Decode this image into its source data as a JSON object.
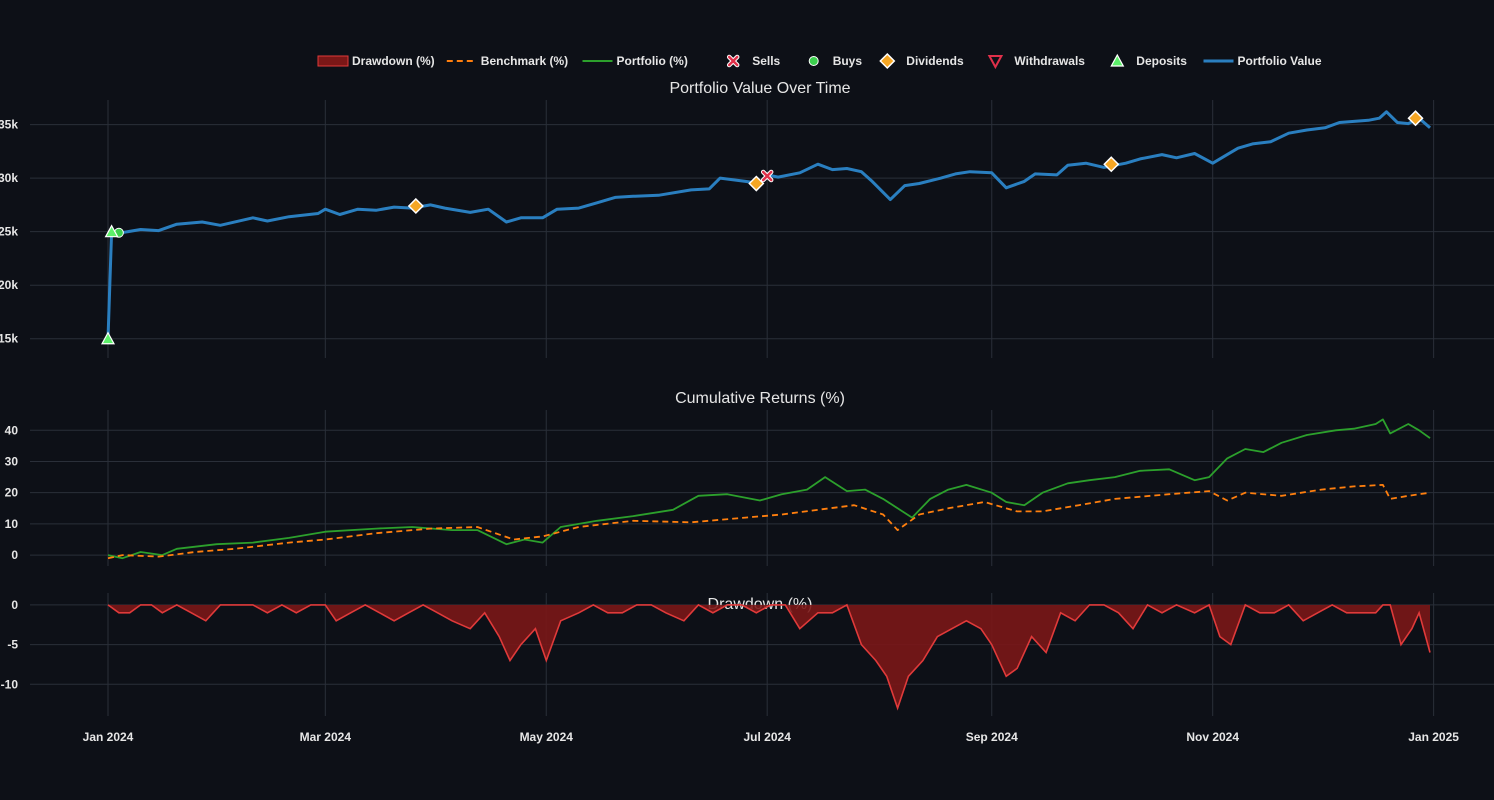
{
  "colors": {
    "background": "#0d1017",
    "grid": "#2a2f39",
    "portfolio_value": "#2a7fc0",
    "portfolio_pct": "#2ca02c",
    "benchmark": "#ff7f0e",
    "drawdown_line": "#e03a3a",
    "drawdown_fill": "#7a1717",
    "dividend": "#f5a623",
    "buy": "#3ccf4e",
    "sell": "#e0304a",
    "deposit": "#5cf06a",
    "withdrawal": "#e0304a"
  },
  "legend": {
    "position": "top-center",
    "items": [
      {
        "key": "drawdown",
        "label": "Drawdown (%)",
        "icon": "filled-rect"
      },
      {
        "key": "benchmark",
        "label": "Benchmark (%)",
        "icon": "dashed-line"
      },
      {
        "key": "portfolio_pct",
        "label": "Portfolio (%)",
        "icon": "solid-line"
      },
      {
        "key": "sells",
        "label": "Sells",
        "icon": "x-marker"
      },
      {
        "key": "buys",
        "label": "Buys",
        "icon": "circle-marker"
      },
      {
        "key": "dividends",
        "label": "Dividends",
        "icon": "diamond-marker"
      },
      {
        "key": "withdrawals",
        "label": "Withdrawals",
        "icon": "triangle-down-marker"
      },
      {
        "key": "deposits",
        "label": "Deposits",
        "icon": "triangle-up-marker"
      },
      {
        "key": "portfolio_value",
        "label": "Portfolio Value",
        "icon": "solid-line"
      }
    ]
  },
  "x_axis": {
    "range": [
      "2024-01-01",
      "2024-12-31"
    ],
    "ticks": [
      {
        "date": "2024-01-01",
        "label": "Jan 2024"
      },
      {
        "date": "2024-03-01",
        "label": "Mar 2024"
      },
      {
        "date": "2024-05-01",
        "label": "May 2024"
      },
      {
        "date": "2024-07-01",
        "label": "Jul 2024"
      },
      {
        "date": "2024-09-01",
        "label": "Sep 2024"
      },
      {
        "date": "2024-11-01",
        "label": "Nov 2024"
      },
      {
        "date": "2025-01-01",
        "label": "Jan 2025"
      }
    ]
  },
  "chart_data": [
    {
      "type": "line",
      "title": "Portfolio Value Over Time",
      "ylim": [
        13200,
        37300
      ],
      "yticks": [
        {
          "value": 15000,
          "label": "15k"
        },
        {
          "value": 20000,
          "label": "20k"
        },
        {
          "value": 25000,
          "label": "25k"
        },
        {
          "value": 30000,
          "label": "30k"
        },
        {
          "value": 35000,
          "label": "35k"
        }
      ],
      "grid": true,
      "series": [
        {
          "name": "Portfolio Value",
          "x": [
            "2024-01-01",
            "2024-01-02",
            "2024-01-03",
            "2024-01-10",
            "2024-01-15",
            "2024-01-20",
            "2024-01-27",
            "2024-02-01",
            "2024-02-10",
            "2024-02-14",
            "2024-02-20",
            "2024-02-28",
            "2024-03-01",
            "2024-03-05",
            "2024-03-08",
            "2024-03-10",
            "2024-03-15",
            "2024-03-20",
            "2024-03-25",
            "2024-03-30",
            "2024-04-03",
            "2024-04-10",
            "2024-04-15",
            "2024-04-20",
            "2024-04-24",
            "2024-04-30",
            "2024-05-04",
            "2024-05-10",
            "2024-05-15",
            "2024-05-20",
            "2024-05-25",
            "2024-06-01",
            "2024-06-10",
            "2024-06-15",
            "2024-06-18",
            "2024-06-25",
            "2024-06-29",
            "2024-07-01",
            "2024-07-04",
            "2024-07-10",
            "2024-07-15",
            "2024-07-19",
            "2024-07-23",
            "2024-07-27",
            "2024-07-30",
            "2024-08-04",
            "2024-08-08",
            "2024-08-12",
            "2024-08-18",
            "2024-08-22",
            "2024-08-26",
            "2024-09-01",
            "2024-09-05",
            "2024-09-10",
            "2024-09-13",
            "2024-09-19",
            "2024-09-22",
            "2024-09-27",
            "2024-10-02",
            "2024-10-08",
            "2024-10-12",
            "2024-10-18",
            "2024-10-22",
            "2024-10-27",
            "2024-11-01",
            "2024-11-05",
            "2024-11-08",
            "2024-11-12",
            "2024-11-17",
            "2024-11-22",
            "2024-11-27",
            "2024-12-02",
            "2024-12-06",
            "2024-12-10",
            "2024-12-14",
            "2024-12-17",
            "2024-12-19",
            "2024-12-22",
            "2024-12-25",
            "2024-12-28",
            "2024-12-31"
          ],
          "y": [
            15000,
            25000,
            24800,
            25200,
            25100,
            25700,
            25900,
            25600,
            26300,
            26000,
            26400,
            26700,
            27100,
            26600,
            26900,
            27100,
            27000,
            27300,
            27200,
            27500,
            27200,
            26800,
            27100,
            25900,
            26300,
            26300,
            27100,
            27200,
            27700,
            28200,
            28300,
            28400,
            28900,
            29000,
            30000,
            29700,
            29500,
            30300,
            30100,
            30500,
            31300,
            30800,
            30900,
            30600,
            29700,
            28000,
            29300,
            29500,
            30000,
            30400,
            30600,
            30500,
            29100,
            29700,
            30400,
            30300,
            31200,
            31400,
            31000,
            31400,
            31800,
            32200,
            31900,
            32300,
            31400,
            32200,
            32800,
            33200,
            33400,
            34200,
            34500,
            34700,
            35200,
            35300,
            35400,
            35600,
            36200,
            35200,
            35100,
            35600,
            34700
          ]
        }
      ],
      "markers": {
        "deposits": [
          {
            "x": "2024-01-01",
            "y": 15000
          },
          {
            "x": "2024-01-02",
            "y": 25000
          }
        ],
        "buys": [
          {
            "x": "2024-01-04",
            "y": 24900
          }
        ],
        "sells": [
          {
            "x": "2024-07-01",
            "y": 30200
          }
        ],
        "dividends": [
          {
            "x": "2024-03-26",
            "y": 27400
          },
          {
            "x": "2024-06-28",
            "y": 29500
          },
          {
            "x": "2024-10-04",
            "y": 31300
          },
          {
            "x": "2024-12-27",
            "y": 35600
          }
        ],
        "withdrawals": []
      }
    },
    {
      "type": "line",
      "title": "Cumulative Returns (%)",
      "ylim": [
        -3.5,
        46.5
      ],
      "yticks": [
        {
          "value": 0,
          "label": "0"
        },
        {
          "value": 10,
          "label": "10"
        },
        {
          "value": 20,
          "label": "20"
        },
        {
          "value": 30,
          "label": "30"
        },
        {
          "value": 40,
          "label": "40"
        }
      ],
      "grid": true,
      "series": [
        {
          "name": "Portfolio (%)",
          "style": "solid",
          "x": [
            "2024-01-01",
            "2024-01-05",
            "2024-01-10",
            "2024-01-16",
            "2024-01-20",
            "2024-01-31",
            "2024-02-10",
            "2024-02-20",
            "2024-03-01",
            "2024-03-15",
            "2024-03-25",
            "2024-04-05",
            "2024-04-12",
            "2024-04-20",
            "2024-04-25",
            "2024-04-30",
            "2024-05-05",
            "2024-05-15",
            "2024-05-25",
            "2024-06-05",
            "2024-06-12",
            "2024-06-20",
            "2024-06-29",
            "2024-07-05",
            "2024-07-12",
            "2024-07-17",
            "2024-07-23",
            "2024-07-28",
            "2024-08-02",
            "2024-08-06",
            "2024-08-10",
            "2024-08-15",
            "2024-08-20",
            "2024-08-25",
            "2024-09-01",
            "2024-09-05",
            "2024-09-10",
            "2024-09-15",
            "2024-09-22",
            "2024-09-28",
            "2024-10-05",
            "2024-10-12",
            "2024-10-20",
            "2024-10-27",
            "2024-10-31",
            "2024-11-05",
            "2024-11-10",
            "2024-11-15",
            "2024-11-20",
            "2024-11-27",
            "2024-12-05",
            "2024-12-10",
            "2024-12-16",
            "2024-12-18",
            "2024-12-20",
            "2024-12-25",
            "2024-12-28",
            "2024-12-31"
          ],
          "y": [
            0,
            -1,
            1,
            0,
            2,
            3.5,
            4,
            5.5,
            7.5,
            8.5,
            9,
            8,
            8,
            3.5,
            5,
            4,
            9,
            11,
            12.5,
            14.5,
            19,
            19.5,
            17.5,
            19.5,
            21,
            25,
            20.5,
            21,
            18,
            15,
            12,
            18,
            21,
            22.5,
            20,
            17,
            16,
            20,
            23,
            24,
            25,
            27,
            27.5,
            24,
            25,
            31,
            34,
            33,
            36,
            38.5,
            40,
            40.5,
            42,
            43.5,
            39,
            42,
            40,
            37.5
          ]
        },
        {
          "name": "Benchmark (%)",
          "style": "dashed",
          "x": [
            "2024-01-01",
            "2024-01-05",
            "2024-01-15",
            "2024-01-25",
            "2024-02-05",
            "2024-02-20",
            "2024-03-01",
            "2024-03-15",
            "2024-03-30",
            "2024-04-12",
            "2024-04-22",
            "2024-04-30",
            "2024-05-10",
            "2024-05-25",
            "2024-06-10",
            "2024-06-25",
            "2024-07-05",
            "2024-07-15",
            "2024-07-25",
            "2024-08-02",
            "2024-08-06",
            "2024-08-12",
            "2024-08-20",
            "2024-08-30",
            "2024-09-08",
            "2024-09-15",
            "2024-09-25",
            "2024-10-05",
            "2024-10-20",
            "2024-10-31",
            "2024-11-05",
            "2024-11-10",
            "2024-11-20",
            "2024-12-01",
            "2024-12-10",
            "2024-12-18",
            "2024-12-20",
            "2024-12-25",
            "2024-12-31"
          ],
          "y": [
            -1,
            0,
            -0.5,
            1,
            2,
            4,
            5,
            7,
            8.5,
            9,
            5,
            6,
            9,
            11,
            10.5,
            12,
            13,
            14.5,
            16,
            13,
            8,
            13,
            15,
            17,
            14,
            14,
            16,
            18,
            19.5,
            20.5,
            17.5,
            20,
            19,
            21,
            22,
            22.5,
            18,
            19,
            20
          ]
        }
      ]
    },
    {
      "type": "area",
      "title": "Drawdown (%)",
      "ylim": [
        -14,
        1.5
      ],
      "yticks": [
        {
          "value": -10,
          "label": "-10"
        },
        {
          "value": -5,
          "label": "-5"
        },
        {
          "value": 0,
          "label": "0"
        }
      ],
      "grid": true,
      "series": [
        {
          "name": "Drawdown (%)",
          "x": [
            "2024-01-01",
            "2024-01-04",
            "2024-01-07",
            "2024-01-10",
            "2024-01-13",
            "2024-01-16",
            "2024-01-20",
            "2024-01-24",
            "2024-01-28",
            "2024-02-01",
            "2024-02-04",
            "2024-02-07",
            "2024-02-10",
            "2024-02-14",
            "2024-02-18",
            "2024-02-22",
            "2024-02-26",
            "2024-03-01",
            "2024-03-04",
            "2024-03-08",
            "2024-03-12",
            "2024-03-16",
            "2024-03-20",
            "2024-03-24",
            "2024-03-28",
            "2024-04-01",
            "2024-04-05",
            "2024-04-10",
            "2024-04-14",
            "2024-04-18",
            "2024-04-21",
            "2024-04-24",
            "2024-04-28",
            "2024-05-01",
            "2024-05-05",
            "2024-05-10",
            "2024-05-14",
            "2024-05-18",
            "2024-05-22",
            "2024-05-26",
            "2024-05-30",
            "2024-06-03",
            "2024-06-08",
            "2024-06-12",
            "2024-06-16",
            "2024-06-20",
            "2024-06-24",
            "2024-06-28",
            "2024-07-02",
            "2024-07-06",
            "2024-07-10",
            "2024-07-15",
            "2024-07-19",
            "2024-07-23",
            "2024-07-27",
            "2024-07-31",
            "2024-08-03",
            "2024-08-06",
            "2024-08-09",
            "2024-08-13",
            "2024-08-17",
            "2024-08-21",
            "2024-08-25",
            "2024-08-29",
            "2024-09-01",
            "2024-09-05",
            "2024-09-08",
            "2024-09-12",
            "2024-09-16",
            "2024-09-20",
            "2024-09-24",
            "2024-09-28",
            "2024-10-02",
            "2024-10-06",
            "2024-10-10",
            "2024-10-14",
            "2024-10-18",
            "2024-10-22",
            "2024-10-27",
            "2024-10-31",
            "2024-11-03",
            "2024-11-06",
            "2024-11-10",
            "2024-11-14",
            "2024-11-18",
            "2024-11-22",
            "2024-11-26",
            "2024-11-30",
            "2024-12-04",
            "2024-12-08",
            "2024-12-12",
            "2024-12-16",
            "2024-12-18",
            "2024-12-20",
            "2024-12-23",
            "2024-12-26",
            "2024-12-28",
            "2024-12-31"
          ],
          "y": [
            0,
            -1,
            -1,
            0,
            0,
            -1,
            0,
            -1,
            -2,
            0,
            0,
            0,
            0,
            -1,
            0,
            -1,
            0,
            0,
            -2,
            -1,
            0,
            -1,
            -2,
            -1,
            0,
            -1,
            -2,
            -3,
            -1,
            -4,
            -7,
            -5,
            -3,
            -7,
            -2,
            -1,
            0,
            -1,
            -1,
            0,
            0,
            -1,
            -2,
            0,
            -1,
            0,
            0,
            -1,
            0,
            0,
            -3,
            -1,
            -1,
            0,
            -5,
            -7,
            -9,
            -13,
            -9,
            -7,
            -4,
            -3,
            -2,
            -3,
            -5,
            -9,
            -8,
            -4,
            -6,
            -1,
            -2,
            0,
            0,
            -1,
            -3,
            0,
            -1,
            0,
            -1,
            0,
            -4,
            -5,
            0,
            -1,
            -1,
            0,
            -2,
            -1,
            0,
            -1,
            -1,
            -1,
            0,
            0,
            -5,
            -3,
            -1,
            -6
          ]
        }
      ]
    }
  ]
}
